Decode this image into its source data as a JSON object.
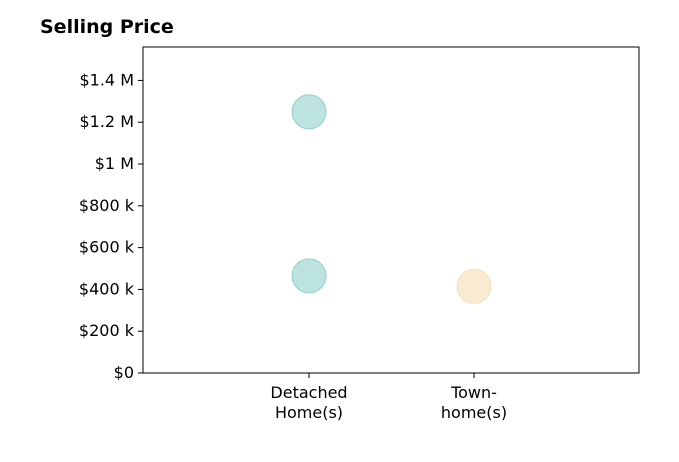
{
  "chart_data": {
    "type": "scatter",
    "title": "Selling Price",
    "xlabel": "",
    "ylabel": "",
    "categories": [
      [
        "Detached",
        "Home(s)"
      ],
      [
        "Town-",
        "home(s)"
      ]
    ],
    "ylim": [
      0,
      1560000
    ],
    "yticks": [
      0,
      200000,
      400000,
      600000,
      800000,
      1000000,
      1200000,
      1400000
    ],
    "ytick_labels": [
      "$0",
      "$200 k",
      "$400 k",
      "$600 k",
      "$800 k",
      "$1 M",
      "$1.2 M",
      "$1.4 M"
    ],
    "grid": false,
    "points": [
      {
        "category_index": 0,
        "y": 1250000,
        "color": "#8fd0c9"
      },
      {
        "category_index": 0,
        "y": 465000,
        "color": "#8fd0c9"
      },
      {
        "category_index": 1,
        "y": 415000,
        "color": "#f5deb3"
      }
    ],
    "colors": {
      "detached": "#8fd0c9",
      "townhome": "#f5deb3"
    }
  }
}
